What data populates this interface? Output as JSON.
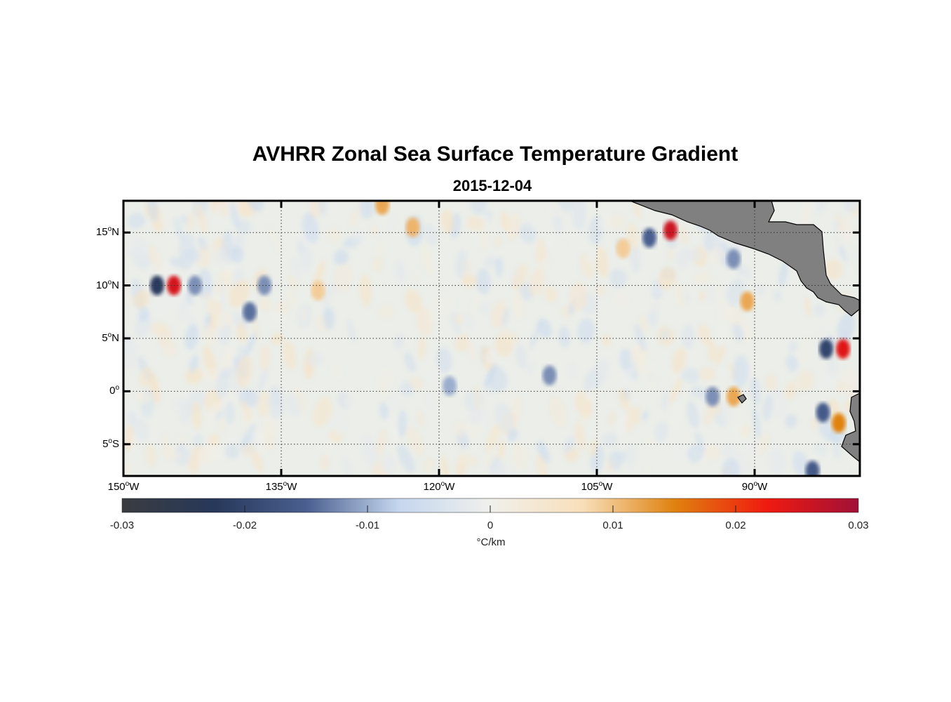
{
  "title": "AVHRR Zonal Sea Surface Temperature Gradient",
  "subtitle": "2015-12-04",
  "map": {
    "lon_range": [
      -150,
      -80
    ],
    "lat_range": [
      -8,
      18
    ],
    "lat_ticks": [
      {
        "value": 15,
        "label": "15",
        "hem": "N"
      },
      {
        "value": 10,
        "label": "10",
        "hem": "N"
      },
      {
        "value": 5,
        "label": "5",
        "hem": "N"
      },
      {
        "value": 0,
        "label": "0",
        "hem": ""
      },
      {
        "value": -5,
        "label": "5",
        "hem": "S"
      }
    ],
    "lon_ticks": [
      {
        "value": -150,
        "label": "150",
        "hem": "W"
      },
      {
        "value": -135,
        "label": "135",
        "hem": "W"
      },
      {
        "value": -120,
        "label": "120",
        "hem": "W"
      },
      {
        "value": -105,
        "label": "105",
        "hem": "W"
      },
      {
        "value": -90,
        "label": "90",
        "hem": "W"
      }
    ],
    "grid": "dotted",
    "land_color": "#808080",
    "ocean_background": "#ebeee9"
  },
  "colorbar": {
    "ticks": [
      "-0.03",
      "-0.02",
      "-0.01",
      "0",
      "0.01",
      "0.02",
      "0.03"
    ],
    "units": "°C/km",
    "range": [
      -0.03,
      0.03
    ],
    "colors": [
      "#3a3c40",
      "#27385a",
      "#4a5f8f",
      "#c4d6ee",
      "#f0f0ec",
      "#f8dfba",
      "#e0820f",
      "#f01a0f",
      "#a01038"
    ]
  },
  "features": [
    {
      "lon": -146.8,
      "lat": 10.0,
      "value": -0.022
    },
    {
      "lon": -145.2,
      "lat": 10.0,
      "value": 0.025
    },
    {
      "lon": -143.2,
      "lat": 10.0,
      "value": -0.012
    },
    {
      "lon": -136.6,
      "lat": 10.0,
      "value": -0.012
    },
    {
      "lon": -138.0,
      "lat": 7.5,
      "value": -0.014
    },
    {
      "lon": -125.4,
      "lat": 17.6,
      "value": 0.012
    },
    {
      "lon": -122.5,
      "lat": 15.5,
      "value": 0.011
    },
    {
      "lon": -98.0,
      "lat": 15.2,
      "value": 0.026
    },
    {
      "lon": -100.0,
      "lat": 14.5,
      "value": -0.015
    },
    {
      "lon": -83.2,
      "lat": 4.0,
      "value": -0.02
    },
    {
      "lon": -81.6,
      "lat": 4.0,
      "value": 0.024
    },
    {
      "lon": -90.7,
      "lat": 8.5,
      "value": 0.012
    },
    {
      "lon": -82.0,
      "lat": -3.0,
      "value": 0.015
    },
    {
      "lon": -83.5,
      "lat": -2.0,
      "value": -0.016
    },
    {
      "lon": -84.5,
      "lat": -7.5,
      "value": -0.016
    },
    {
      "lon": -92.0,
      "lat": -0.5,
      "value": 0.012
    },
    {
      "lon": -94.0,
      "lat": -0.5,
      "value": -0.012
    },
    {
      "lon": -109.5,
      "lat": 1.5,
      "value": -0.012
    },
    {
      "lon": -119.0,
      "lat": 0.5,
      "value": -0.01
    },
    {
      "lon": -92.0,
      "lat": 12.5,
      "value": -0.012
    },
    {
      "lon": -102.5,
      "lat": 13.5,
      "value": 0.009
    },
    {
      "lon": -131.5,
      "lat": 9.5,
      "value": 0.009
    }
  ]
}
